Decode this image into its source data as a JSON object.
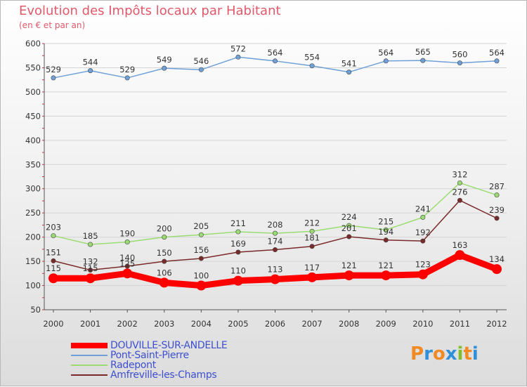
{
  "title": "Evolution des Impôts locaux par Habitant",
  "subtitle": "(en € et par an)",
  "logo": {
    "text": "Proxiti"
  },
  "colors": {
    "title": "#e2596a",
    "grid": "#d4d4d4",
    "axis": "#555555",
    "label": "#333333",
    "legend_text": "#3d4fcf",
    "logo_letters": [
      "#f08a24",
      "#2f8fd8",
      "#f08a24",
      "#2f8fd8",
      "#7fbf2a",
      "#f08a24",
      "#2f8fd8"
    ]
  },
  "chart_data": {
    "type": "line",
    "categories": [
      "2000",
      "2001",
      "2002",
      "2003",
      "2004",
      "2005",
      "2006",
      "2007",
      "2008",
      "2009",
      "2010",
      "2011",
      "2012"
    ],
    "ylim": [
      50,
      600
    ],
    "y_ticks": [
      50,
      100,
      150,
      200,
      250,
      300,
      350,
      400,
      450,
      500,
      550,
      600
    ],
    "grid": true,
    "legend_position": "bottom-left",
    "series": [
      {
        "name": "DOUVILLE-SUR-ANDELLE",
        "color": "#ff0000",
        "values": [
          115,
          115,
          125,
          106,
          100,
          110,
          113,
          117,
          121,
          121,
          123,
          163,
          134
        ],
        "labels": [
          "115",
          "115",
          "125",
          "106",
          "100",
          "110",
          "113",
          "117",
          "121",
          "121",
          "123",
          "163",
          "134"
        ]
      },
      {
        "name": "Pont-Saint-Pierre",
        "color": "#6fa0d8",
        "values": [
          529,
          544,
          529,
          549,
          546,
          572,
          564,
          554,
          541,
          564,
          565,
          560,
          564
        ],
        "labels": [
          "529",
          "544",
          "529",
          "549",
          "546",
          "572",
          "564",
          "554",
          "541",
          "564",
          "565",
          "560",
          "564"
        ]
      },
      {
        "name": "Radepont",
        "color": "#9bdc72",
        "values": [
          203,
          185,
          190,
          200,
          205,
          211,
          208,
          212,
          224,
          215,
          241,
          312,
          287
        ],
        "labels": [
          "203",
          "185",
          "190",
          "200",
          "205",
          "211",
          "208",
          "212",
          "224",
          "215",
          "241",
          "312",
          "287"
        ]
      },
      {
        "name": "Amfreville-les-Champs",
        "color": "#7a2a2a",
        "values": [
          151,
          132,
          140,
          150,
          156,
          169,
          174,
          181,
          201,
          194,
          192,
          276,
          239
        ],
        "labels": [
          "151",
          "132",
          "140",
          "150",
          "156",
          "169",
          "174",
          "181",
          "201",
          "194",
          "192",
          "276",
          "239"
        ]
      }
    ]
  }
}
